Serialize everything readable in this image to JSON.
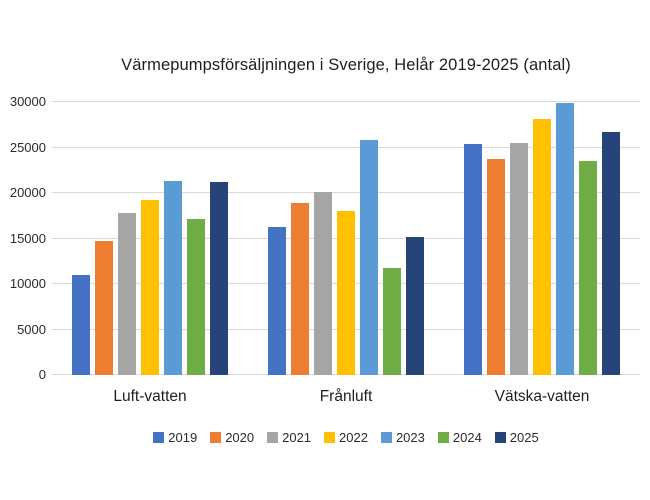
{
  "chart_data": {
    "type": "bar",
    "title": "Värmepumpsförsäljningen i Sverige, Helår 2019-2025 (antal)",
    "categories": [
      "Luft-vatten",
      "Frånluft",
      "Vätska-vatten"
    ],
    "series": [
      {
        "name": "2019",
        "color": "#4472C4",
        "values": [
          11000,
          16300,
          25400
        ]
      },
      {
        "name": "2020",
        "color": "#ED7D31",
        "values": [
          14700,
          18900,
          23700
        ]
      },
      {
        "name": "2021",
        "color": "#A5A5A5",
        "values": [
          17800,
          20100,
          25500
        ]
      },
      {
        "name": "2022",
        "color": "#FFC000",
        "values": [
          19200,
          18000,
          28100
        ]
      },
      {
        "name": "2023",
        "color": "#5B9BD5",
        "values": [
          21300,
          25800,
          29900
        ]
      },
      {
        "name": "2024",
        "color": "#70AD47",
        "values": [
          17100,
          11800,
          23500
        ]
      },
      {
        "name": "2025",
        "color": "#264478",
        "values": [
          21200,
          15200,
          26700
        ]
      }
    ],
    "y_axis": {
      "min": 0,
      "max": 30000,
      "step": 5000,
      "tick_labels": [
        "0",
        "5000",
        "10000",
        "15000",
        "20000",
        "25000",
        "30000"
      ]
    },
    "xlabel": "",
    "ylabel": "",
    "grid": "horizontal",
    "legend_position": "bottom"
  },
  "colors": {
    "background": "#FFFFFF",
    "gridline": "#D9D9D9",
    "text": "#1F1F1F"
  }
}
